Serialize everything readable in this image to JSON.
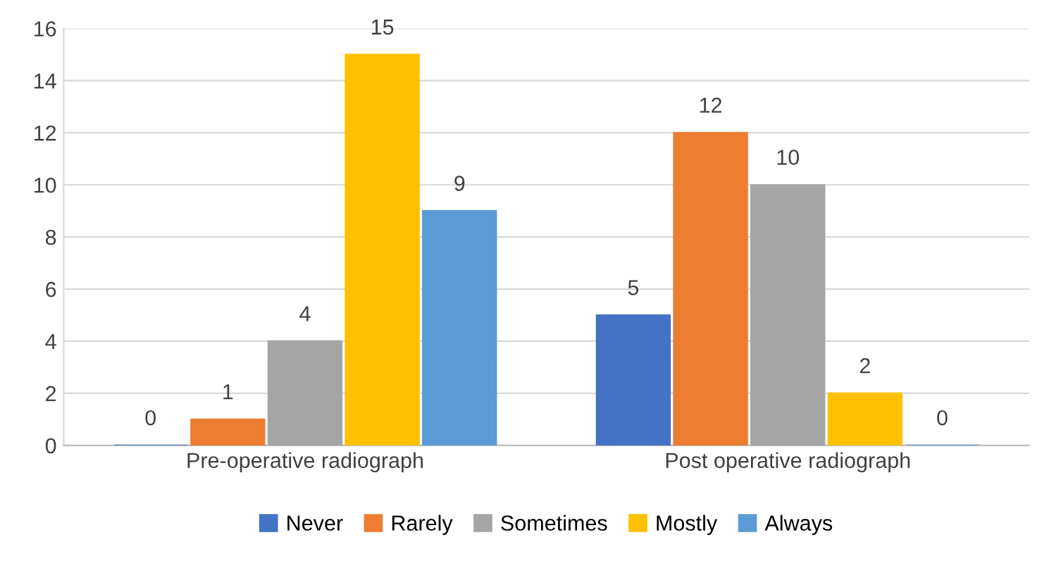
{
  "chart_data": {
    "type": "bar",
    "categories": [
      "Pre-operative radiograph",
      "Post operative radiograph"
    ],
    "series": [
      {
        "name": "Never",
        "color": "#4472c4",
        "values": [
          0,
          5
        ]
      },
      {
        "name": "Rarely",
        "color": "#ed7d31",
        "values": [
          1,
          12
        ]
      },
      {
        "name": "Sometimes",
        "color": "#a5a5a5",
        "values": [
          4,
          10
        ]
      },
      {
        "name": "Mostly",
        "color": "#ffc000",
        "values": [
          15,
          2
        ]
      },
      {
        "name": "Always",
        "color": "#5b9bd5",
        "values": [
          9,
          0
        ]
      }
    ],
    "ylim": [
      0,
      16
    ],
    "yticks": [
      0,
      2,
      4,
      6,
      8,
      10,
      12,
      14,
      16
    ],
    "grid": "y",
    "legend": "bottom",
    "data_labels": true
  }
}
